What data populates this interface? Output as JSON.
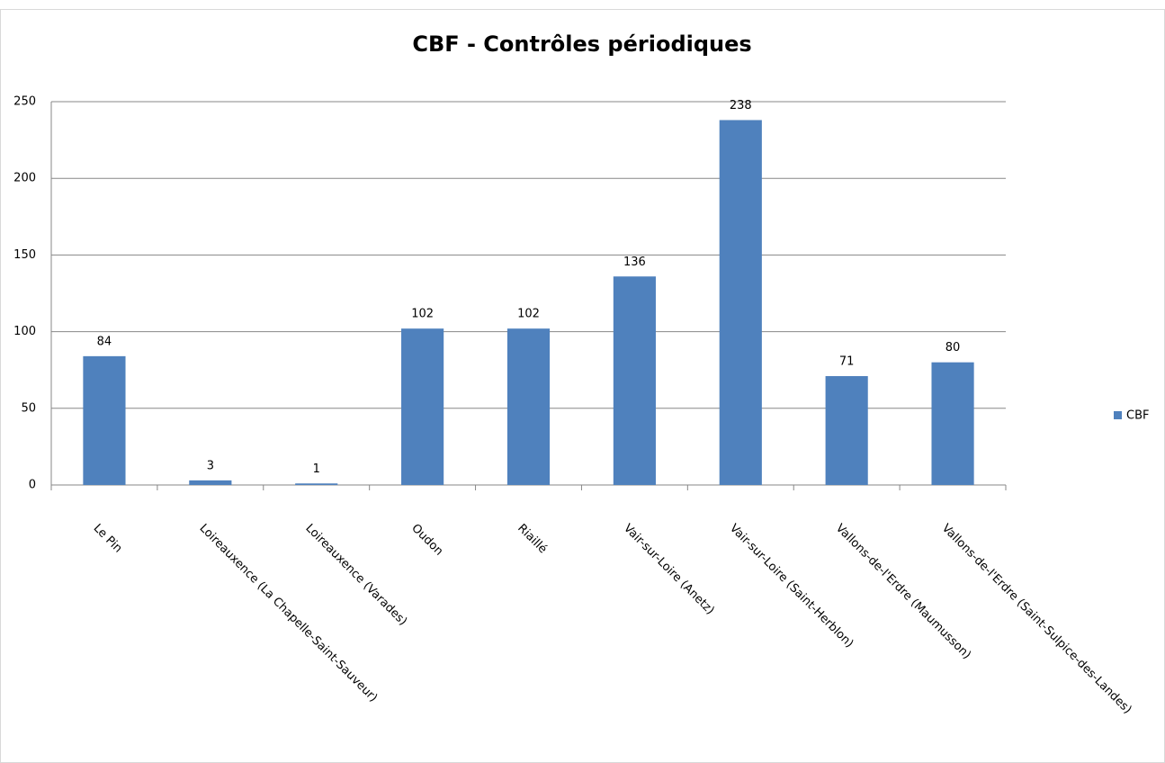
{
  "chart_data": {
    "type": "bar",
    "title": "CBF - Contrôles périodiques",
    "categories": [
      "Le Pin",
      "Loireauxence (La Chapelle-Saint-Sauveur)",
      "Loireauxence (Varades)",
      "Oudon",
      "Riaillé",
      "Vair-sur-Loire (Anetz)",
      "Vair-sur-Loire (Saint-Herblon)",
      "Vallons-de-l'Erdre (Maumusson)",
      "Vallons-de-l'Erdre (Saint-Sulpice-des-Landes)"
    ],
    "series": [
      {
        "name": "CBF",
        "color": "#4f81bd",
        "values": [
          84,
          3,
          1,
          102,
          102,
          136,
          238,
          71,
          80
        ]
      }
    ],
    "ylim": [
      0,
      250
    ],
    "yticks": [
      0,
      50,
      100,
      150,
      200,
      250
    ],
    "grid": true,
    "legend": "right"
  }
}
